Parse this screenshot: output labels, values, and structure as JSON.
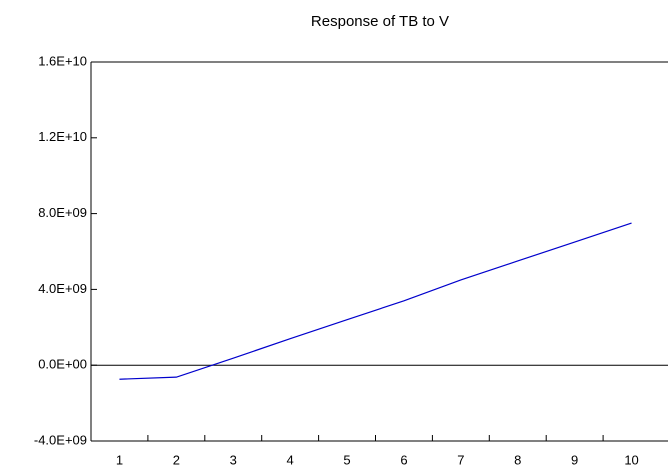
{
  "chart_data": {
    "type": "line",
    "title": "Response of TB to V",
    "categories": [
      "1",
      "2",
      "3",
      "4",
      "5",
      "6",
      "7",
      "8",
      "9",
      "10"
    ],
    "series": [
      {
        "name": "TB",
        "color": "#0000cc",
        "values": [
          -740000000,
          -630000000,
          370000000,
          1400000000,
          2400000000,
          3400000000,
          4500000000,
          5500000000,
          6500000000,
          7500000000
        ]
      }
    ],
    "ylim": [
      -4000000000,
      16000000000
    ],
    "yticks": [
      {
        "value": -4000000000,
        "label": "-4.0E+09"
      },
      {
        "value": 0,
        "label": "0.0E+00"
      },
      {
        "value": 4000000000,
        "label": "4.0E+09"
      },
      {
        "value": 8000000000,
        "label": "8.0E+09"
      },
      {
        "value": 12000000000,
        "label": "1.2E+10"
      },
      {
        "value": 16000000000,
        "label": "1.6E+10"
      }
    ],
    "zero_line": true
  }
}
